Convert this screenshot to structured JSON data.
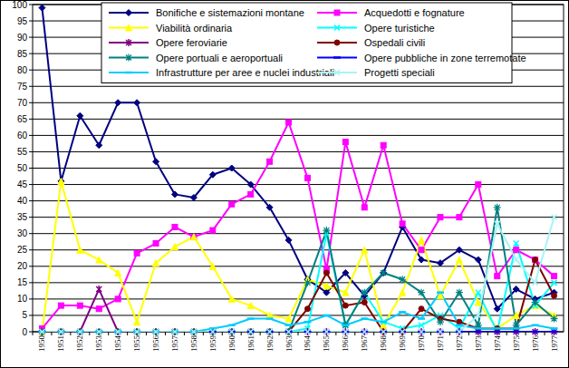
{
  "chart_data": {
    "type": "line",
    "categories": [
      "1950",
      "1951",
      "1952",
      "1953",
      "1954",
      "1955",
      "1956",
      "1957",
      "1958",
      "1959",
      "1960",
      "1961",
      "1962",
      "1963",
      "1964",
      "1965",
      "1966",
      "1967",
      "1968",
      "1969",
      "1970",
      "1971",
      "1972",
      "1973",
      "1974",
      "1975",
      "1976",
      "1977"
    ],
    "ylim": [
      0,
      100
    ],
    "yticks": [
      0,
      5,
      10,
      15,
      20,
      25,
      30,
      35,
      40,
      45,
      50,
      55,
      60,
      65,
      70,
      75,
      80,
      85,
      90,
      95,
      100
    ],
    "grid": true,
    "legend": "top",
    "series": [
      {
        "name": "Bonifiche e sistemazioni montane",
        "color": "#000080",
        "marker": "diamond",
        "values": [
          99,
          46,
          66,
          57,
          70,
          70,
          52,
          42,
          41,
          48,
          50,
          45,
          38,
          28,
          16,
          12,
          18,
          11,
          18,
          32,
          22,
          21,
          25,
          22,
          7,
          13,
          10,
          12
        ]
      },
      {
        "name": "Acquedotti e fognature",
        "color": "#ff00ff",
        "marker": "square",
        "values": [
          1,
          8,
          8,
          7,
          10,
          24,
          27,
          32,
          29,
          31,
          39,
          42,
          52,
          64,
          47,
          19,
          58,
          38,
          57,
          33,
          25,
          35,
          35,
          45,
          17,
          25,
          22,
          17
        ]
      },
      {
        "name": "Viabilità ordinaria",
        "color": "#ffff00",
        "marker": "triangle",
        "values": [
          0,
          46,
          25,
          22,
          18,
          3,
          21,
          26,
          29,
          20,
          10,
          8,
          5,
          4,
          16,
          14,
          12,
          25,
          2,
          12,
          28,
          11,
          22,
          9,
          1,
          5,
          8,
          5
        ]
      },
      {
        "name": "Opere turistiche",
        "color": "#00ffff",
        "marker": "x",
        "values": [
          0,
          0,
          0,
          0,
          0,
          0,
          0,
          0,
          0,
          0,
          0,
          0,
          0,
          0,
          1,
          30,
          2,
          12,
          3,
          1,
          2,
          5,
          1,
          12,
          0,
          27,
          8,
          15
        ]
      },
      {
        "name": "Opere feroviarie",
        "color": "#800080",
        "marker": "asterisk",
        "values": [
          0,
          0,
          0,
          13,
          0,
          0,
          0,
          0,
          0,
          0,
          0,
          0,
          0,
          0,
          0,
          0,
          0,
          0,
          0,
          0,
          0,
          0,
          0,
          0,
          0,
          0,
          0,
          0
        ]
      },
      {
        "name": "Ospedali civili",
        "color": "#800000",
        "marker": "circle",
        "values": [
          0,
          0,
          0,
          0,
          0,
          0,
          0,
          0,
          0,
          0,
          0,
          0,
          0,
          0,
          7,
          18,
          8,
          9,
          0,
          0,
          7,
          4,
          3,
          1,
          1,
          1,
          22,
          11
        ]
      },
      {
        "name": "Opere portuali e aeroportuali",
        "color": "#008080",
        "marker": "plus",
        "values": [
          0,
          0,
          0,
          0,
          0,
          0,
          0,
          0,
          0,
          0,
          0,
          0,
          0,
          0,
          15,
          31,
          2,
          12,
          18,
          16,
          12,
          3,
          12,
          2,
          38,
          2,
          9,
          4
        ]
      },
      {
        "name": "Opere pubbliche in zone terremotate",
        "color": "#0000ff",
        "marker": "dash",
        "values": [
          0,
          0,
          0,
          0,
          0,
          0,
          0,
          0,
          0,
          0,
          0,
          0,
          0,
          0,
          0,
          0,
          0,
          0,
          0,
          0,
          0,
          0,
          0,
          0,
          0,
          0,
          0,
          0
        ]
      },
      {
        "name": "Infrastrutture per aree e nuclei industriali",
        "color": "#00ccff",
        "marker": "dash",
        "values": [
          0,
          0,
          0,
          0,
          0,
          0,
          0,
          0,
          0,
          1,
          2,
          4,
          4,
          2,
          3,
          5,
          2,
          4,
          3,
          6,
          4,
          12,
          2,
          1,
          1,
          1,
          2,
          1
        ]
      },
      {
        "name": "Progetti speciali",
        "color": "#a8f4f4",
        "marker": "x",
        "values": [
          0,
          0,
          0,
          0,
          0,
          0,
          0,
          0,
          0,
          0,
          0,
          0,
          0,
          0,
          0,
          0,
          0,
          0,
          0,
          0,
          0,
          0,
          0,
          5,
          33,
          22,
          15,
          35
        ]
      }
    ]
  }
}
